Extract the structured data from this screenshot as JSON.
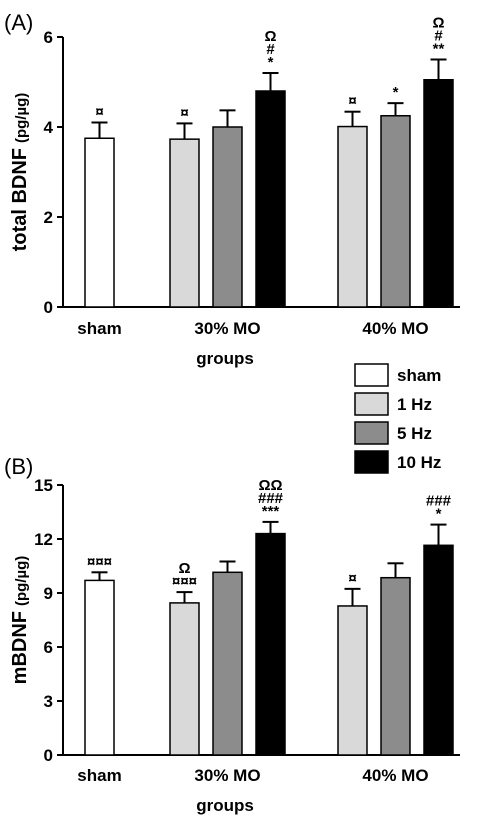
{
  "legend": {
    "entries": [
      {
        "label": "sham",
        "color": "#ffffff"
      },
      {
        "label": "1 Hz",
        "color": "#d9d9d9"
      },
      {
        "label": "5 Hz",
        "color": "#8c8c8c"
      },
      {
        "label": "10 Hz",
        "color": "#000000"
      }
    ],
    "placement": "right, between panels"
  },
  "chart_data": [
    {
      "type": "bar",
      "panel_label": "(A)",
      "ylabel": "total BDNF",
      "ylabel_unit": "(pg/µg)",
      "xlabel": "groups",
      "ylim": [
        0,
        6
      ],
      "yticks": [
        "0",
        "2",
        "4",
        "6"
      ],
      "categories": [
        "sham",
        "30% MO",
        "40% MO"
      ],
      "series": [
        {
          "name": "sham",
          "values": [
            3.75,
            null,
            null
          ],
          "errors": [
            0.35,
            null,
            null
          ],
          "annotations": [
            [
              "¤"
            ],
            null,
            null
          ]
        },
        {
          "name": "1 Hz",
          "values": [
            null,
            3.73,
            4.01
          ],
          "errors": [
            null,
            0.35,
            0.33
          ],
          "annotations": [
            null,
            [
              "¤"
            ],
            [
              "¤"
            ]
          ]
        },
        {
          "name": "5 Hz",
          "values": [
            null,
            4.0,
            4.25
          ],
          "errors": [
            null,
            0.37,
            0.28
          ],
          "annotations": [
            null,
            [],
            [
              "*"
            ]
          ]
        },
        {
          "name": "10 Hz",
          "values": [
            null,
            4.8,
            5.05
          ],
          "errors": [
            null,
            0.4,
            0.45
          ],
          "annotations": [
            null,
            [
              "Ω",
              "#",
              "*"
            ],
            [
              "Ω",
              "#",
              "**"
            ]
          ]
        }
      ]
    },
    {
      "type": "bar",
      "panel_label": "(B)",
      "ylabel": "mBDNF",
      "ylabel_unit": "(pg/µg)",
      "xlabel": "groups",
      "ylim": [
        0,
        15
      ],
      "yticks": [
        "0",
        "3",
        "6",
        "9",
        "12",
        "15"
      ],
      "categories": [
        "sham",
        "30% MO",
        "40% MO"
      ],
      "series": [
        {
          "name": "sham",
          "values": [
            9.7,
            null,
            null
          ],
          "errors": [
            0.45,
            null,
            null
          ],
          "annotations": [
            [
              "¤¤¤"
            ],
            null,
            null
          ]
        },
        {
          "name": "1 Hz",
          "values": [
            null,
            8.45,
            8.28
          ],
          "errors": [
            null,
            0.6,
            0.95
          ],
          "annotations": [
            null,
            [
              "Ω",
              "¤¤¤"
            ],
            [
              "¤"
            ]
          ]
        },
        {
          "name": "5 Hz",
          "values": [
            null,
            10.15,
            9.85
          ],
          "errors": [
            null,
            0.6,
            0.8
          ],
          "annotations": [
            null,
            [],
            []
          ]
        },
        {
          "name": "10 Hz",
          "values": [
            null,
            12.3,
            11.65
          ],
          "errors": [
            null,
            0.65,
            1.15
          ],
          "annotations": [
            null,
            [
              "ΩΩ",
              "###",
              "***"
            ],
            [
              "###",
              "*"
            ]
          ]
        }
      ]
    }
  ]
}
